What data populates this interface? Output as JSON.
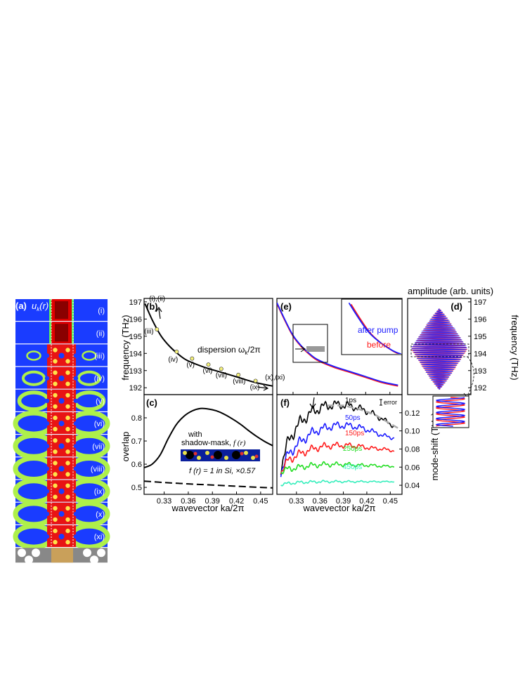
{
  "panel_a": {
    "label": "(a)",
    "field_label": "u",
    "field_sub": "k",
    "field_arg": "(r)",
    "rows": [
      "(i)",
      "(ii)",
      "(iii)",
      "(iv)",
      "(v)",
      "(vi)",
      "(vii)",
      "(viii)",
      "(ix)",
      "(x)",
      "(xi)"
    ]
  },
  "labels": {
    "b": "(b)",
    "c": "(c)",
    "d": "(d)",
    "e": "(e)",
    "f": "(f)",
    "dispersion": "dispersion ω",
    "dispersion_sub": "k",
    "dispersion_tail": "/2π",
    "with": "with",
    "shadow_mask": "shadow-mask,",
    "shadow_f": "f (r)",
    "f_in_si": "f (r) = 1 in Si, ×0.57",
    "after_pump": "after pump",
    "before": "before",
    "error": "error",
    "amplitude": "amplitude (arb. units)",
    "wavevector": "wavevector ka/2π",
    "frequency_b": "frequency (THz)",
    "frequency_d": "frequency (THz)",
    "overlap": "overlap",
    "mode_shift": "mode-shift (THz)"
  },
  "colors": {
    "blue": "#1a1aff",
    "red": "#ff1a1a",
    "green": "#22dd22",
    "cyan": "#33eebb",
    "gray": "#aaaaaa",
    "black": "#000000"
  },
  "chart_data": [
    {
      "panel": "b",
      "type": "line",
      "ylabel": "frequency (THz)",
      "ylim": [
        191.6,
        197.2
      ],
      "xlim": [
        0.31,
        0.46
      ],
      "yticks": [
        "197",
        "196",
        "195",
        "194",
        "193",
        "192"
      ],
      "series": [
        {
          "name": "dispersion ω_k/2π",
          "x": [
            0.311,
            0.32,
            0.33,
            0.34,
            0.35,
            0.36,
            0.38,
            0.4,
            0.42,
            0.44,
            0.46
          ],
          "y": [
            196.9,
            195.9,
            195.0,
            194.4,
            193.95,
            193.6,
            193.2,
            192.9,
            192.6,
            192.3,
            192.1
          ]
        }
      ],
      "points": {
        "labels": [
          "(i),(ii)",
          "(iii)",
          "(iv)",
          "(v)",
          "(vi)",
          "(vii)",
          "(viii)",
          "(ix)",
          "(x),(xi)"
        ],
        "x": [
          0.311,
          0.325,
          0.348,
          0.366,
          0.385,
          0.4,
          0.42,
          0.44,
          0.456
        ],
        "y": [
          196.9,
          195.4,
          194.1,
          193.7,
          193.35,
          193.1,
          192.75,
          192.4,
          192.15
        ]
      }
    },
    {
      "panel": "c",
      "type": "line",
      "xlabel": "wavevector ka/2π",
      "ylabel": "overlap",
      "xlim": [
        0.305,
        0.465
      ],
      "ylim": [
        0.47,
        0.9
      ],
      "xticks": [
        "0.33",
        "0.36",
        "0.39",
        "0.42",
        "0.45"
      ],
      "yticks": [
        "0.8",
        "0.7",
        "0.6",
        "0.5"
      ],
      "series": [
        {
          "name": "with shadow-mask, f(r)",
          "x": [
            0.305,
            0.315,
            0.325,
            0.335,
            0.345,
            0.355,
            0.365,
            0.375,
            0.385,
            0.395,
            0.405,
            0.415,
            0.425,
            0.435,
            0.445,
            0.455,
            0.465
          ],
          "y": [
            0.585,
            0.6,
            0.64,
            0.71,
            0.77,
            0.808,
            0.83,
            0.84,
            0.838,
            0.83,
            0.815,
            0.795,
            0.772,
            0.745,
            0.72,
            0.698,
            0.68
          ]
        },
        {
          "name": "f(r) = 1 in Si, ×0.57",
          "x": [
            0.305,
            0.33,
            0.36,
            0.39,
            0.42,
            0.45,
            0.465
          ],
          "y": [
            0.527,
            0.521,
            0.515,
            0.51,
            0.505,
            0.5,
            0.498
          ]
        }
      ]
    },
    {
      "panel": "e",
      "type": "line",
      "series": [
        {
          "name": "after pump",
          "x": [
            0.31,
            0.32,
            0.33,
            0.34,
            0.35,
            0.36,
            0.38,
            0.4,
            0.42,
            0.44,
            0.46
          ],
          "y": [
            196.95,
            195.95,
            195.05,
            194.45,
            194.0,
            193.65,
            193.25,
            192.95,
            192.65,
            192.35,
            192.15
          ]
        },
        {
          "name": "before",
          "x": [
            0.31,
            0.32,
            0.33,
            0.34,
            0.35,
            0.36,
            0.38,
            0.4,
            0.42,
            0.44,
            0.46
          ],
          "y": [
            196.9,
            195.9,
            195.0,
            194.4,
            193.95,
            193.6,
            193.2,
            192.9,
            192.6,
            192.3,
            192.1
          ]
        }
      ]
    },
    {
      "panel": "f",
      "type": "line",
      "xlabel": "wavevector ka/2π",
      "ylabel": "mode-shift (THz)",
      "xlim": [
        0.305,
        0.465
      ],
      "ylim": [
        0.03,
        0.14
      ],
      "xticks": [
        "0.33",
        "0.36",
        "0.39",
        "0.42",
        "0.45"
      ],
      "yticks": [
        "0.12",
        "0.10",
        "0.08",
        "0.06",
        "0.04"
      ],
      "series": [
        {
          "name": "1ps",
          "base": [
            [
              0.31,
              0.06
            ],
            [
              0.32,
              0.09
            ],
            [
              0.335,
              0.11
            ],
            [
              0.35,
              0.121
            ],
            [
              0.365,
              0.127
            ],
            [
              0.38,
              0.129
            ],
            [
              0.395,
              0.128
            ],
            [
              0.41,
              0.125
            ],
            [
              0.425,
              0.12
            ],
            [
              0.44,
              0.113
            ],
            [
              0.455,
              0.105
            ]
          ],
          "wiggle": 0.006
        },
        {
          "name": "50ps",
          "base": [
            [
              0.31,
              0.055
            ],
            [
              0.32,
              0.075
            ],
            [
              0.335,
              0.088
            ],
            [
              0.35,
              0.098
            ],
            [
              0.365,
              0.103
            ],
            [
              0.38,
              0.106
            ],
            [
              0.395,
              0.106
            ],
            [
              0.41,
              0.104
            ],
            [
              0.425,
              0.1
            ],
            [
              0.44,
              0.095
            ],
            [
              0.455,
              0.092
            ]
          ],
          "wiggle": 0.005
        },
        {
          "name": "150ps",
          "base": [
            [
              0.31,
              0.055
            ],
            [
              0.32,
              0.068
            ],
            [
              0.335,
              0.075
            ],
            [
              0.35,
              0.08
            ],
            [
              0.365,
              0.083
            ],
            [
              0.38,
              0.084
            ],
            [
              0.395,
              0.084
            ],
            [
              0.41,
              0.083
            ],
            [
              0.425,
              0.081
            ],
            [
              0.44,
              0.08
            ],
            [
              0.455,
              0.078
            ]
          ],
          "wiggle": 0.004
        },
        {
          "name": "250ps",
          "base": [
            [
              0.31,
              0.055
            ],
            [
              0.32,
              0.058
            ],
            [
              0.335,
              0.06
            ],
            [
              0.35,
              0.062
            ],
            [
              0.365,
              0.063
            ],
            [
              0.38,
              0.063
            ],
            [
              0.395,
              0.063
            ],
            [
              0.41,
              0.062
            ],
            [
              0.425,
              0.062
            ],
            [
              0.44,
              0.061
            ],
            [
              0.455,
              0.061
            ]
          ],
          "wiggle": 0.003
        },
        {
          "name": "450ps",
          "base": [
            [
              0.31,
              0.041
            ],
            [
              0.33,
              0.043
            ],
            [
              0.36,
              0.044
            ],
            [
              0.39,
              0.044
            ],
            [
              0.42,
              0.044
            ],
            [
              0.455,
              0.044
            ]
          ],
          "wiggle": 0.0015
        },
        {
          "name": "",
          "dashed": true,
          "base": [
            [
              0.37,
              0.128
            ],
            [
              0.39,
              0.128
            ],
            [
              0.41,
              0.124
            ],
            [
              0.43,
              0.118
            ],
            [
              0.45,
              0.108
            ],
            [
              0.46,
              0.103
            ]
          ],
          "wiggle": 0
        }
      ]
    },
    {
      "panel": "d",
      "type": "line",
      "xlabel": "amplitude (arb. units)",
      "ylabel": "frequency (THz)",
      "ylim": [
        191.6,
        197.2
      ],
      "yticks": [
        "197",
        "196",
        "195",
        "194",
        "193",
        "192"
      ],
      "series": [
        {
          "name": "",
          "center": 194.3,
          "top": 196.6,
          "bottom": 191.9,
          "max_amplitude": 1.0
        },
        {
          "name": "",
          "center": 194.25,
          "top": 196.6,
          "bottom": 191.9,
          "max_amplitude": 1.0
        }
      ]
    }
  ]
}
